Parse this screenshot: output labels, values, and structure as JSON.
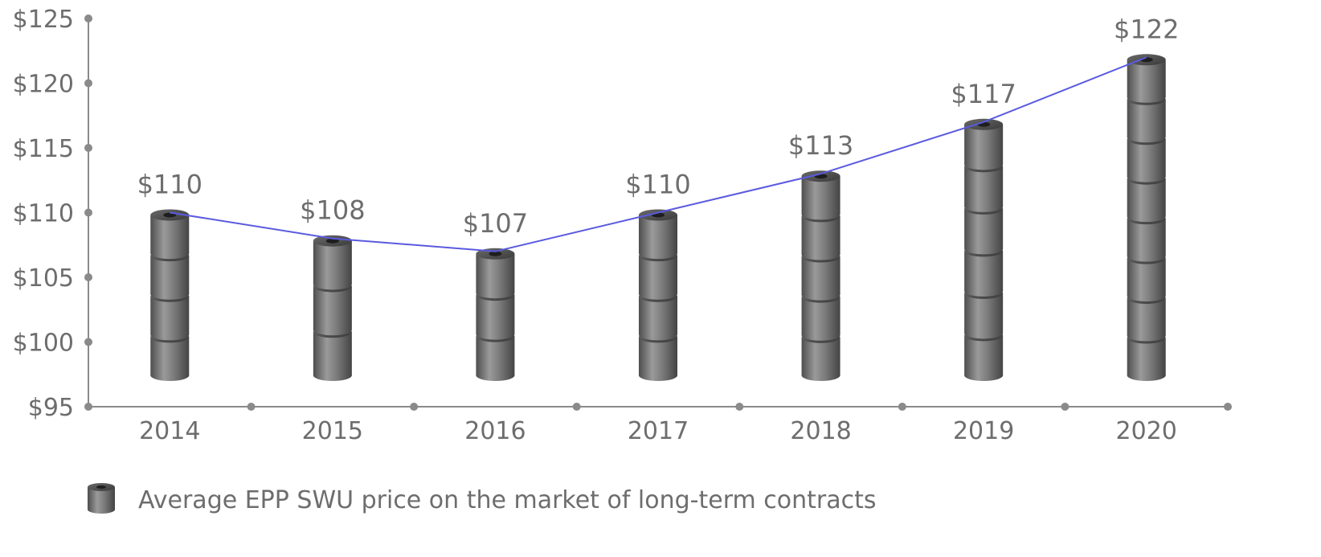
{
  "chart_data": {
    "type": "bar",
    "categories": [
      "2014",
      "2015",
      "2016",
      "2017",
      "2018",
      "2019",
      "2020"
    ],
    "series": [
      {
        "name": "Average EPP SWU price on the market of long-term contracts",
        "values": [
          110,
          108,
          107,
          110,
          113,
          117,
          122
        ]
      }
    ],
    "data_labels": [
      "$110",
      "$108",
      "$107",
      "$110",
      "$113",
      "$117",
      "$122"
    ],
    "y_ticks": [
      95,
      100,
      105,
      110,
      115,
      120,
      125
    ],
    "y_tick_labels": [
      "$95",
      "$100",
      "$105",
      "$110",
      "$115",
      "$120",
      "$125"
    ],
    "ylim": [
      95,
      125
    ],
    "title": "",
    "xlabel": "",
    "ylabel": "",
    "grid": false,
    "legend_position": "bottom-left",
    "overlay_line": true,
    "colors": {
      "bar": "#7a7a7a",
      "line": "#5a5ae0",
      "axis": "#8a8a8a",
      "text": "#6d6d6d"
    }
  }
}
